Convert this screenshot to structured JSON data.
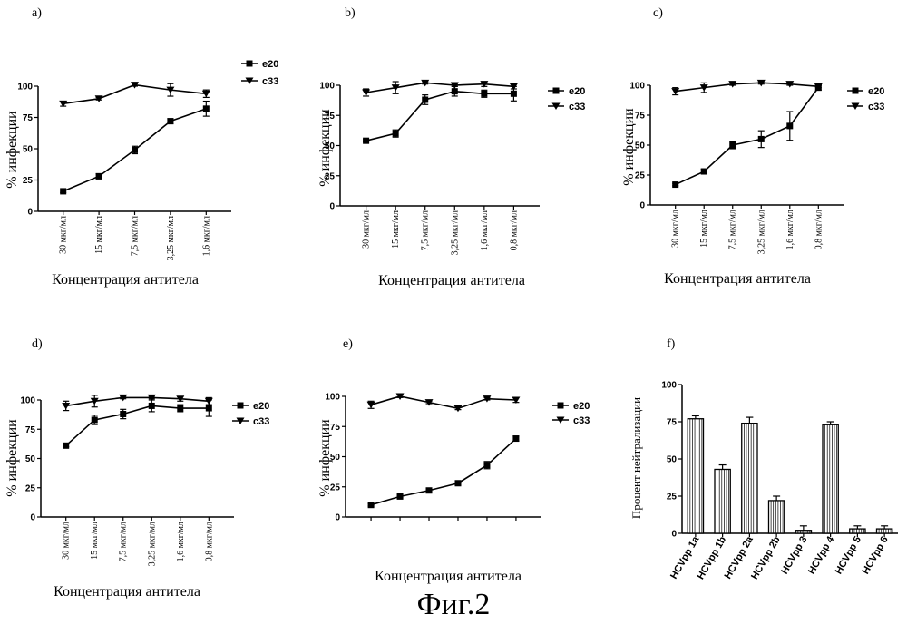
{
  "figure_caption": "Фиг.2",
  "chart_data": [
    {
      "panel": "a)",
      "type": "line",
      "xlabel": "Концентрация антитела",
      "ylabel": "% инфекции",
      "categories": [
        "30 мкг/мл",
        "15 мкг/мл",
        "7,5 мкг/мл",
        "3,25 мкг/мл",
        "1,6 мкг/мл"
      ],
      "yticks": [
        0,
        25,
        50,
        75,
        100
      ],
      "ylim": [
        0,
        100
      ],
      "series": [
        {
          "name": "e20",
          "marker": "square",
          "values": [
            16,
            28,
            49,
            72,
            82
          ],
          "err": [
            1,
            2,
            3,
            2,
            6
          ]
        },
        {
          "name": "c33",
          "marker": "triangle-down",
          "values": [
            86,
            90,
            101,
            97,
            94
          ],
          "err": [
            2,
            1,
            1,
            5,
            3
          ]
        }
      ]
    },
    {
      "panel": "b)",
      "type": "line",
      "xlabel": "Концентрация антитела",
      "ylabel": "% инфекции",
      "categories": [
        "30 мкг/мл",
        "15 мкг/мл",
        "7,5 мкг/мл",
        "3,25 мкг/мл",
        "1,6 мкг/мл",
        "0,8 мкг/мл"
      ],
      "yticks": [
        0,
        25,
        50,
        75,
        100
      ],
      "ylim": [
        0,
        100
      ],
      "series": [
        {
          "name": "e20",
          "marker": "square",
          "values": [
            54,
            60,
            88,
            95,
            93,
            93
          ],
          "err": [
            1,
            3,
            4,
            4,
            3,
            6
          ]
        },
        {
          "name": "c33",
          "marker": "triangle-down",
          "values": [
            94,
            98,
            102,
            100,
            101,
            99
          ],
          "err": [
            3,
            5,
            1,
            1,
            2,
            2
          ]
        }
      ]
    },
    {
      "panel": "c)",
      "type": "line",
      "xlabel": "Концентрация антитела",
      "ylabel": "% инфекции",
      "categories": [
        "30 мкг/мл",
        "15 мкг/мл",
        "7,5 мкг/мл",
        "3,25 мкг/мл",
        "1,6 мкг/мл",
        "0,8 мкг/мл"
      ],
      "yticks": [
        0,
        25,
        50,
        75,
        100
      ],
      "ylim": [
        0,
        100
      ],
      "series": [
        {
          "name": "e20",
          "marker": "square",
          "values": [
            17,
            28,
            50,
            55,
            66,
            98
          ],
          "err": [
            1,
            2,
            3,
            7,
            12,
            2
          ]
        },
        {
          "name": "c33",
          "marker": "triangle-down",
          "values": [
            95,
            98,
            101,
            102,
            101,
            99
          ],
          "err": [
            3,
            4,
            1,
            1,
            1,
            1
          ]
        }
      ]
    },
    {
      "panel": "d)",
      "type": "line",
      "xlabel": "Концентрация антитела",
      "ylabel": "% инфекции",
      "categories": [
        "30 мкг/мл",
        "15 мкг/мл",
        "7,5 мкг/мл",
        "3,25 мкг/мл",
        "1,6 мкг/мл",
        "0,8 мкг/мл"
      ],
      "yticks": [
        0,
        25,
        50,
        75,
        100
      ],
      "ylim": [
        0,
        100
      ],
      "series": [
        {
          "name": "e20",
          "marker": "square",
          "values": [
            61,
            83,
            88,
            95,
            93,
            93
          ],
          "err": [
            1,
            4,
            4,
            5,
            3,
            7
          ]
        },
        {
          "name": "c33",
          "marker": "triangle-down",
          "values": [
            95,
            99,
            102,
            102,
            101,
            99
          ],
          "err": [
            4,
            5,
            1,
            1,
            2,
            3
          ]
        }
      ]
    },
    {
      "panel": "e)",
      "type": "line",
      "xlabel": "Концентрация антитела",
      "ylabel": "% инфекции",
      "categories": [
        "",
        "",
        "",
        "",
        "",
        ""
      ],
      "yticks": [
        0,
        25,
        50,
        75,
        100
      ],
      "ylim": [
        0,
        100
      ],
      "series": [
        {
          "name": "e20",
          "marker": "square",
          "values": [
            10,
            17,
            22,
            28,
            43,
            65
          ],
          "err": [
            1,
            1,
            1,
            1,
            3,
            2
          ]
        },
        {
          "name": "c33",
          "marker": "triangle-down",
          "values": [
            93,
            100,
            95,
            90,
            98,
            97
          ],
          "err": [
            3,
            1,
            1,
            1,
            1,
            2
          ]
        }
      ]
    },
    {
      "panel": "f)",
      "type": "bar",
      "xlabel": "",
      "ylabel": "Процент нейтрализации",
      "categories": [
        "HCVpp 1a",
        "HCVpp 1b",
        "HCVpp 2a",
        "HCVpp 2b",
        "HCVpp 3",
        "HCVpp 4",
        "HCVpp 5",
        "HCVpp 6"
      ],
      "yticks": [
        0,
        25,
        50,
        75,
        100
      ],
      "ylim": [
        0,
        100
      ],
      "values": [
        77,
        43,
        74,
        22,
        2,
        73,
        3,
        3
      ],
      "err": [
        2,
        3,
        4,
        3,
        3,
        2,
        2,
        2
      ]
    }
  ]
}
